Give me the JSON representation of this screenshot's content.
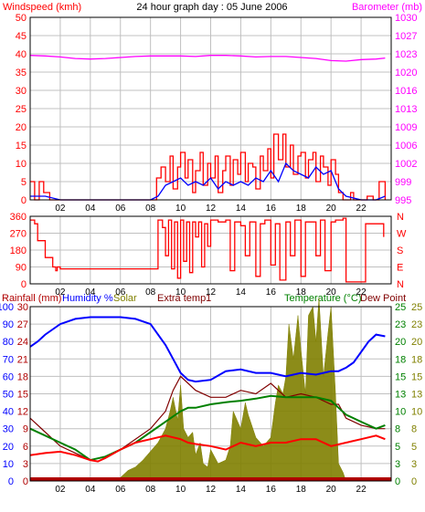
{
  "page": {
    "title": "24 hour graph day : 05 June 2006"
  },
  "x_axis": {
    "ticks": [
      "02",
      "04",
      "06",
      "08",
      "10",
      "12",
      "14",
      "16",
      "18",
      "20",
      "22"
    ]
  },
  "colors": {
    "red": "#ff0000",
    "blue": "#0000ff",
    "magenta": "#ff00ff",
    "olive": "#808000",
    "green": "#008000",
    "maroon": "#800000",
    "purple": "#800080",
    "darkred": "#b00000",
    "grid": "#c0c0c0",
    "frame": "#000000"
  },
  "chart_data": [
    {
      "type": "line",
      "panel": "wind",
      "labels": {
        "left": "Windspeed (kmh)",
        "right": "Barometer (mb)"
      },
      "left_ticks": [
        "0",
        "5",
        "10",
        "15",
        "20",
        "25",
        "30",
        "35",
        "40",
        "45",
        "50"
      ],
      "right_ticks": [
        "995",
        "999",
        "1002",
        "1006",
        "1009",
        "1013",
        "1016",
        "1020",
        "1023",
        "1027",
        "1030"
      ],
      "ylim_left": [
        0,
        50
      ],
      "ylim_right": [
        995,
        1030
      ],
      "series": [
        {
          "name": "Windspeed (kmh)",
          "axis": "left",
          "color": "#ff0000",
          "step": true,
          "x": [
            0,
            0.3,
            0.6,
            0.9,
            1.3,
            1.5,
            5,
            5.5,
            8,
            8.4,
            8.7,
            9.0,
            9.3,
            9.5,
            9.8,
            10.0,
            10.3,
            10.5,
            10.8,
            11.0,
            11.3,
            11.5,
            11.8,
            12.0,
            12.3,
            12.5,
            12.8,
            13.0,
            13.3,
            13.5,
            13.8,
            14.0,
            14.3,
            14.5,
            14.8,
            15.0,
            15.3,
            15.5,
            15.8,
            16.0,
            16.2,
            16.5,
            16.8,
            17.0,
            17.3,
            17.5,
            17.8,
            18.0,
            18.3,
            18.5,
            18.8,
            19.0,
            19.3,
            19.5,
            19.8,
            20.0,
            20.3,
            20.5,
            20.8,
            21.0,
            21.3,
            21.5,
            22,
            22.4,
            22.8,
            23.2,
            23.6
          ],
          "y": [
            5,
            0,
            5,
            2,
            0,
            0,
            0,
            0,
            0,
            6,
            9,
            5,
            12,
            3,
            9,
            13,
            6,
            11,
            2,
            8,
            13,
            4,
            10,
            6,
            12,
            2,
            8,
            12,
            4,
            11,
            7,
            13,
            5,
            10,
            9,
            3,
            12,
            8,
            14,
            6,
            18,
            11,
            18,
            9,
            15,
            7,
            12,
            13,
            6,
            11,
            13,
            5,
            12,
            9,
            4,
            11,
            7,
            2,
            0,
            0,
            2,
            0,
            0,
            1,
            0,
            5,
            0
          ]
        },
        {
          "name": "Windspeed average",
          "axis": "left",
          "color": "#0000ff",
          "x": [
            0,
            1,
            2,
            3,
            4,
            5,
            6,
            7,
            8,
            8.5,
            9,
            9.5,
            10,
            10.5,
            11,
            11.5,
            12,
            12.5,
            13,
            13.5,
            14,
            14.5,
            15,
            15.5,
            16,
            16.5,
            17,
            17.5,
            18,
            18.5,
            19,
            19.5,
            20,
            20.5,
            21,
            22,
            23,
            23.6
          ],
          "y": [
            1,
            1,
            0,
            0,
            0,
            0,
            0,
            0,
            0,
            1,
            4,
            5,
            6,
            4,
            5,
            4,
            6,
            3,
            5,
            4,
            5,
            4,
            6,
            5,
            8,
            5,
            10,
            8,
            7,
            6,
            9,
            7,
            8,
            3,
            1,
            0,
            0,
            1
          ]
        },
        {
          "name": "Barometer (mb)",
          "axis": "right",
          "color": "#ff00ff",
          "x": [
            0,
            1,
            2,
            3,
            4,
            5,
            6,
            7,
            8,
            9,
            10,
            11,
            12,
            13,
            14,
            15,
            16,
            17,
            18,
            19,
            20,
            21,
            22,
            23,
            23.6
          ],
          "y": [
            1022.7,
            1022.6,
            1022.4,
            1022.1,
            1022.0,
            1022.1,
            1022.3,
            1022.5,
            1022.6,
            1022.6,
            1022.6,
            1022.5,
            1022.7,
            1022.7,
            1022.6,
            1022.4,
            1022.5,
            1022.5,
            1022.3,
            1022.1,
            1021.7,
            1021.6,
            1021.9,
            1022.0,
            1022.2
          ]
        }
      ]
    },
    {
      "type": "line",
      "panel": "direction",
      "left_ticks": [
        "0",
        "90",
        "180",
        "270",
        "360"
      ],
      "right_ticks": [
        "N",
        "E",
        "S",
        "W",
        "N"
      ],
      "ylim": [
        0,
        360
      ],
      "series": [
        {
          "name": "Wind direction",
          "color": "#ff0000",
          "step": true,
          "x": [
            0,
            0.3,
            0.5,
            1.0,
            1.5,
            1.7,
            1.8,
            2.0,
            8.0,
            8.5,
            8.8,
            9.0,
            9.2,
            9.4,
            9.6,
            9.8,
            10.0,
            10.2,
            10.4,
            10.6,
            10.8,
            11.0,
            11.2,
            11.4,
            11.6,
            11.8,
            12.0,
            12.5,
            13.0,
            13.3,
            13.6,
            14.0,
            14.3,
            14.6,
            15.0,
            15.3,
            15.6,
            16.0,
            16.3,
            16.6,
            17.0,
            17.3,
            17.6,
            18.0,
            18.3,
            18.6,
            19.0,
            19.3,
            19.6,
            20.0,
            20.3,
            20.8,
            21.0,
            22.0,
            22.3,
            23.0,
            23.5
          ],
          "y": [
            340,
            320,
            230,
            140,
            90,
            70,
            90,
            80,
            80,
            340,
            300,
            150,
            340,
            80,
            330,
            30,
            340,
            120,
            330,
            60,
            330,
            250,
            330,
            90,
            320,
            200,
            340,
            330,
            340,
            70,
            330,
            310,
            150,
            330,
            40,
            320,
            340,
            100,
            320,
            20,
            330,
            150,
            340,
            40,
            330,
            330,
            150,
            340,
            70,
            330,
            340,
            350,
            10,
            10,
            320,
            320,
            250
          ]
        }
      ]
    },
    {
      "type": "line",
      "panel": "multi",
      "labels": {
        "rainfall": "Rainfall (mm)",
        "humidity": "Humidity %",
        "solar": "Solar",
        "extra": "Extra temp1",
        "temperature": "Temperature (°C)",
        "dewpoint": "Dew Point"
      },
      "left_ticks_a": [
        "0",
        "10",
        "20",
        "30",
        "40",
        "50",
        "60",
        "70",
        "80",
        "90",
        "100"
      ],
      "left_ticks_b": [
        "0",
        "3",
        "6",
        "9",
        "12",
        "15",
        "18",
        "21",
        "24",
        "27",
        "30"
      ],
      "right_ticks_a": [
        "0",
        "3",
        "5",
        "8",
        "10",
        "13",
        "15",
        "18",
        "20",
        "23",
        "25"
      ],
      "right_ticks_b": [
        "0",
        "3",
        "5",
        "8",
        "10",
        "13",
        "15",
        "18",
        "20",
        "23",
        "25"
      ],
      "ylim_humidity": [
        0,
        100
      ],
      "ylim_temperature": [
        0,
        25
      ],
      "series": [
        {
          "name": "Humidity %",
          "color": "#0000ff",
          "x": [
            0,
            0.5,
            1,
            2,
            3,
            4,
            5,
            6,
            7,
            8,
            9,
            9.5,
            10,
            10.5,
            11,
            12,
            13,
            14,
            15,
            16,
            17,
            18,
            19,
            20,
            20.5,
            21,
            21.5,
            22,
            22.5,
            23,
            23.6
          ],
          "y": [
            77,
            80,
            84,
            90,
            93,
            94,
            94,
            94,
            93,
            90,
            78,
            70,
            62,
            58,
            57,
            58,
            63,
            64,
            62,
            62,
            60,
            62,
            61,
            63,
            63,
            65,
            68,
            74,
            80,
            84,
            83
          ]
        },
        {
          "name": "Temperature (°C)",
          "color": "#ff0000",
          "x": [
            0,
            1,
            2,
            3,
            4,
            4.5,
            5,
            6,
            7,
            8,
            9,
            10,
            10.5,
            11,
            12,
            13,
            14,
            15,
            16,
            17,
            18,
            19,
            20,
            21,
            22,
            23,
            23.6
          ],
          "y": [
            3.7,
            4.0,
            4.2,
            3.7,
            3.0,
            2.8,
            3.3,
            4.5,
            5.5,
            6.0,
            6.5,
            6.0,
            5.5,
            5.3,
            5.0,
            4.5,
            5.5,
            5.0,
            5.5,
            5.5,
            6.0,
            6.0,
            5.0,
            5.5,
            6.0,
            6.5,
            6.0
          ]
        },
        {
          "name": "Dew Point",
          "color": "#008000",
          "x": [
            0,
            1,
            2,
            3,
            4,
            5,
            6,
            7,
            8,
            9,
            10,
            10.5,
            11,
            12,
            13,
            14,
            15,
            16,
            17,
            18,
            19,
            20,
            20.5,
            21,
            22,
            23,
            23.6
          ],
          "y": [
            7.5,
            6.5,
            5.5,
            4.5,
            3.0,
            3.5,
            4.5,
            5.5,
            7.0,
            8.5,
            10.0,
            10.5,
            10.5,
            11.0,
            11.3,
            11.5,
            11.8,
            12.2,
            12.0,
            12.0,
            12.0,
            11.5,
            10.5,
            9.5,
            8.5,
            7.5,
            8.0
          ]
        },
        {
          "name": "Extra temp1",
          "color": "#800000",
          "x": [
            0,
            1,
            2,
            3,
            4,
            5,
            6,
            7,
            8,
            9,
            9.5,
            10,
            10.5,
            11,
            12,
            13,
            14,
            15,
            16,
            17,
            18,
            19,
            20,
            20.5,
            21,
            22,
            23,
            23.6
          ],
          "y": [
            9,
            7,
            5,
            4,
            3,
            3.5,
            4.5,
            6,
            7.5,
            10,
            13,
            15,
            14,
            13,
            12,
            12,
            13,
            12.5,
            14,
            12,
            12.5,
            12,
            11,
            11,
            9,
            8,
            7.5,
            7.5
          ]
        },
        {
          "name": "Solar",
          "color": "#808000",
          "type": "area",
          "x": [
            0,
            5.0,
            5.5,
            6,
            6.5,
            7,
            7.5,
            8,
            8.5,
            9,
            9.3,
            9.5,
            9.8,
            10,
            10.2,
            10.5,
            10.8,
            11,
            11.3,
            11.5,
            11.8,
            12,
            12.5,
            13,
            13.3,
            13.5,
            14,
            14.3,
            14.5,
            15,
            15.5,
            16,
            16.3,
            16.5,
            16.8,
            17,
            17.2,
            17.5,
            17.8,
            18,
            18.3,
            18.5,
            18.8,
            19,
            19.2,
            19.5,
            19.8,
            20,
            20.3,
            20.5,
            20.8,
            21,
            24
          ],
          "y": [
            0,
            0,
            0,
            2,
            6,
            8,
            12,
            17,
            22,
            30,
            40,
            48,
            35,
            55,
            30,
            25,
            28,
            15,
            22,
            10,
            8,
            18,
            10,
            12,
            20,
            40,
            30,
            45,
            38,
            25,
            20,
            25,
            45,
            55,
            50,
            60,
            90,
            70,
            95,
            75,
            50,
            95,
            100,
            80,
            105,
            60,
            85,
            100,
            50,
            10,
            5,
            0,
            0
          ]
        },
        {
          "name": "Rainfall (mm)",
          "color": "#b00000",
          "x": [
            0,
            23.6
          ],
          "y": [
            0,
            0
          ]
        }
      ]
    }
  ]
}
